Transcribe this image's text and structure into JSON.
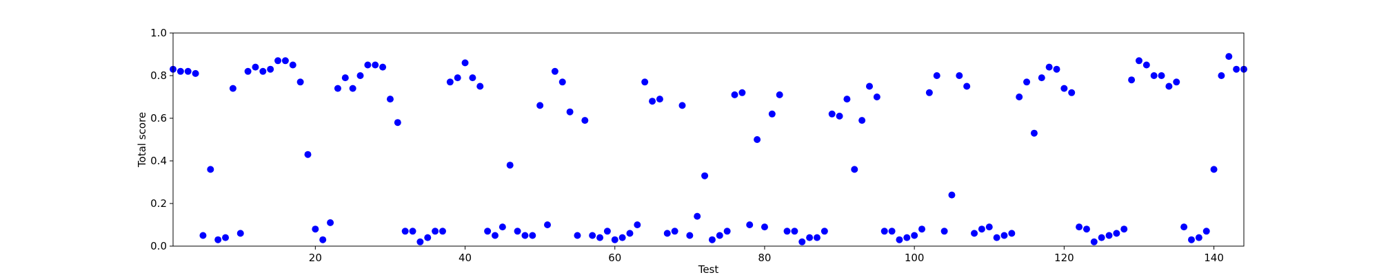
{
  "chart_data": {
    "type": "scatter",
    "title": "",
    "xlabel": "Test",
    "ylabel": "Total score",
    "xlim": [
      1,
      144
    ],
    "ylim": [
      0.0,
      1.0
    ],
    "grid": false,
    "x_ticks": [
      20,
      40,
      60,
      80,
      100,
      120,
      140
    ],
    "x_tick_labels": [
      "20",
      "40",
      "60",
      "80",
      "100",
      "120",
      "140"
    ],
    "y_ticks": [
      0.0,
      0.2,
      0.4,
      0.6,
      0.8,
      1.0
    ],
    "y_tick_labels": [
      "0.0",
      "0.2",
      "0.4",
      "0.6",
      "0.8",
      "1.0"
    ],
    "marker_color": "#0000ff",
    "series": [
      {
        "x": [
          1,
          2,
          3,
          4,
          5,
          6,
          7,
          8,
          9,
          10,
          11,
          12,
          13,
          14,
          15,
          16,
          17,
          18,
          19,
          20,
          21,
          22,
          23,
          24,
          25,
          26,
          27,
          28,
          29,
          30,
          31,
          32,
          33,
          34,
          35,
          36,
          37,
          38,
          39,
          40,
          41,
          42,
          43,
          44,
          45,
          46,
          47,
          48,
          49,
          50,
          51,
          52,
          53,
          54,
          55,
          56,
          57,
          58,
          59,
          60,
          61,
          62,
          63,
          64,
          65,
          66,
          67,
          68,
          69,
          70,
          71,
          72,
          73,
          74,
          75,
          76,
          77,
          78,
          79,
          80,
          81,
          82,
          83,
          84,
          85,
          86,
          87,
          88,
          89,
          90,
          91,
          92,
          93,
          94,
          95,
          96,
          97,
          98,
          99,
          100,
          101,
          102,
          103,
          104,
          105,
          106,
          107,
          108,
          109,
          110,
          111,
          112,
          113,
          114,
          115,
          116,
          117,
          118,
          119,
          120,
          121,
          122,
          123,
          124,
          125,
          126,
          127,
          128,
          129,
          130,
          131,
          132,
          133,
          134,
          135,
          136,
          137,
          138,
          139,
          140,
          141,
          142,
          143,
          144
        ],
        "y": [
          0.83,
          0.82,
          0.82,
          0.81,
          0.05,
          0.36,
          0.03,
          0.04,
          0.74,
          0.06,
          0.82,
          0.84,
          0.82,
          0.83,
          0.87,
          0.87,
          0.85,
          0.77,
          0.43,
          0.08,
          0.03,
          0.11,
          0.74,
          0.79,
          0.74,
          0.8,
          0.85,
          0.85,
          0.84,
          0.69,
          0.58,
          0.07,
          0.07,
          0.02,
          0.04,
          0.07,
          0.07,
          0.77,
          0.79,
          0.86,
          0.79,
          0.75,
          0.07,
          0.05,
          0.09,
          0.38,
          0.07,
          0.05,
          0.05,
          0.66,
          0.1,
          0.82,
          0.77,
          0.63,
          0.05,
          0.59,
          0.05,
          0.04,
          0.07,
          0.03,
          0.04,
          0.06,
          0.1,
          0.77,
          0.68,
          0.69,
          0.06,
          0.07,
          0.66,
          0.05,
          0.14,
          0.33,
          0.03,
          0.05,
          0.07,
          0.71,
          0.72,
          0.1,
          0.5,
          0.09,
          0.62,
          0.71,
          0.07,
          0.07,
          0.02,
          0.04,
          0.04,
          0.07,
          0.62,
          0.61,
          0.69,
          0.36,
          0.59,
          0.75,
          0.7,
          0.07,
          0.07,
          0.03,
          0.04,
          0.05,
          0.08,
          0.72,
          0.8,
          0.07,
          0.24,
          0.8,
          0.75,
          0.06,
          0.08,
          0.09,
          0.04,
          0.05,
          0.06,
          0.7,
          0.77,
          0.53,
          0.79,
          0.84,
          0.83,
          0.74,
          0.72,
          0.09,
          0.08,
          0.02,
          0.04,
          0.05,
          0.06,
          0.08,
          0.78,
          0.87,
          0.85,
          0.8,
          0.8,
          0.75,
          0.77,
          0.09,
          0.03,
          0.04,
          0.07,
          0.36,
          0.8,
          0.89,
          0.83,
          0.83
        ]
      }
    ]
  }
}
